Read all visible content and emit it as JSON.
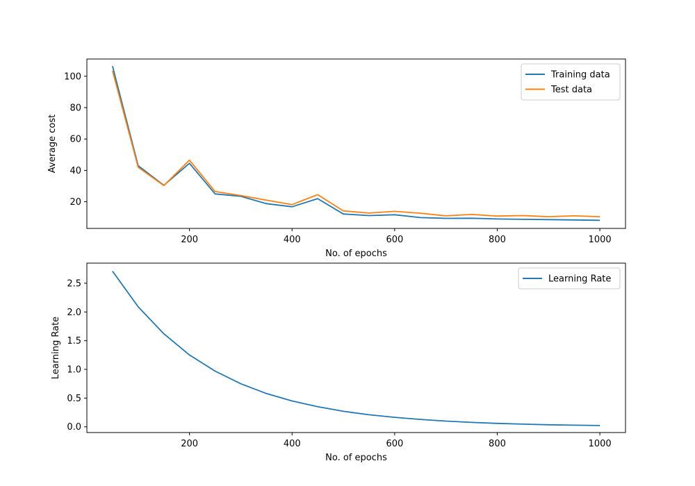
{
  "colors": {
    "series_blue": "#1f77b4",
    "series_orange": "#ff7f0e",
    "axes": "#000000",
    "legend_border": "#cccccc"
  },
  "chart_data": [
    {
      "type": "line",
      "title": "",
      "xlabel": "No. of epochs",
      "ylabel": "Average cost",
      "xlim": [
        0,
        1050
      ],
      "ylim": [
        3,
        111
      ],
      "xticks": [
        200,
        400,
        600,
        800,
        1000
      ],
      "yticks": [
        20,
        40,
        60,
        80,
        100
      ],
      "legend_position": "top-right",
      "grid": false,
      "x": [
        50,
        100,
        150,
        200,
        250,
        300,
        350,
        400,
        450,
        500,
        550,
        600,
        650,
        700,
        750,
        800,
        850,
        900,
        950,
        1000
      ],
      "series": [
        {
          "name": "Training data",
          "color": "#1f77b4",
          "values": [
            106.5,
            43.0,
            30.5,
            44.5,
            25.0,
            23.5,
            18.8,
            16.8,
            22.0,
            12.2,
            11.2,
            11.7,
            9.9,
            9.4,
            9.5,
            9.0,
            8.8,
            8.6,
            8.4,
            8.2
          ]
        },
        {
          "name": "Test data",
          "color": "#ff7f0e",
          "values": [
            103.5,
            42.0,
            30.3,
            46.5,
            26.5,
            24.0,
            21.0,
            18.2,
            24.5,
            14.2,
            12.8,
            13.9,
            12.7,
            11.0,
            11.9,
            10.9,
            11.2,
            10.5,
            11.0,
            10.5
          ]
        }
      ]
    },
    {
      "type": "line",
      "title": "",
      "xlabel": "No. of epochs",
      "ylabel": "Learning Rate",
      "xlim": [
        0,
        1050
      ],
      "ylim": [
        -0.1,
        2.85
      ],
      "xticks": [
        200,
        400,
        600,
        800,
        1000
      ],
      "yticks": [
        0.0,
        0.5,
        1.0,
        1.5,
        2.0,
        2.5
      ],
      "ytick_labels": [
        "0.0",
        "0.5",
        "1.0",
        "1.5",
        "2.0",
        "2.5"
      ],
      "legend_position": "top-right",
      "grid": false,
      "x": [
        50,
        100,
        150,
        200,
        250,
        300,
        350,
        400,
        450,
        500,
        550,
        600,
        650,
        700,
        750,
        800,
        850,
        900,
        950,
        1000
      ],
      "series": [
        {
          "name": "Learning Rate",
          "color": "#1f77b4",
          "values": [
            2.71,
            2.09,
            1.62,
            1.25,
            0.97,
            0.75,
            0.58,
            0.45,
            0.35,
            0.27,
            0.21,
            0.165,
            0.128,
            0.099,
            0.077,
            0.059,
            0.046,
            0.036,
            0.028,
            0.022
          ]
        }
      ]
    }
  ]
}
